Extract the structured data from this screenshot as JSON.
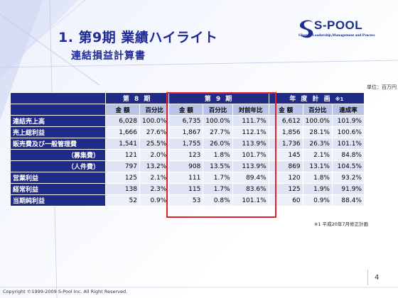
{
  "slide": {
    "title": "1. 第9期 業績ハイライト",
    "subtitle": "連結損益計算書",
    "unit_note": "単位：百万円",
    "footnote": "※1 平成20年7月修正計画",
    "page_number": "4",
    "copyright": "Copyright ©1999-2009 S-Pool Inc. All Right Reserved."
  },
  "logo": {
    "name": "S-POOL",
    "tagline": "Change Leadership,Management and Process"
  },
  "table": {
    "group_headers": [
      "第 8 期",
      "第 9 期",
      "年 度 計 画",
      "※1"
    ],
    "columns": [
      "金 額",
      "百分比",
      "金 額",
      "百分比",
      "対前年比",
      "金 額",
      "百分比",
      "達成率"
    ],
    "rows": [
      {
        "label": "連結売上高",
        "values": [
          "6,028",
          "100.0%",
          "6,735",
          "100.0%",
          "111.7%",
          "6,612",
          "100.0%",
          "101.9%"
        ]
      },
      {
        "label": "売上総利益",
        "values": [
          "1,666",
          "27.6%",
          "1,867",
          "27.7%",
          "112.1%",
          "1,856",
          "28.1%",
          "100.6%"
        ]
      },
      {
        "label": "販売費及び一般管理費",
        "values": [
          "1,541",
          "25.5%",
          "1,755",
          "26.0%",
          "113.9%",
          "1,736",
          "26.3%",
          "101.1%"
        ]
      },
      {
        "label": "（募集費）",
        "values": [
          "121",
          "2.0%",
          "123",
          "1.8%",
          "101.7%",
          "145",
          "2.1%",
          "84.8%"
        ]
      },
      {
        "label": "（人件費）",
        "values": [
          "797",
          "13.2%",
          "908",
          "13.5%",
          "113.9%",
          "869",
          "13.1%",
          "104.5%"
        ]
      },
      {
        "label": "営業利益",
        "values": [
          "125",
          "2.1%",
          "111",
          "1.7%",
          "89.4%",
          "120",
          "1.8%",
          "93.2%"
        ]
      },
      {
        "label": "経常利益",
        "values": [
          "138",
          "2.3%",
          "115",
          "1.7%",
          "83.6%",
          "125",
          "1.9%",
          "91.9%"
        ]
      },
      {
        "label": "当期純利益",
        "values": [
          "52",
          "0.9%",
          "53",
          "0.8%",
          "101.1%",
          "60",
          "0.9%",
          "88.4%"
        ]
      }
    ]
  },
  "colors": {
    "header_navy": "#1f2b86",
    "subheader_blue": "#b9c3e8",
    "highlight_red": "#e0202c",
    "title_blue": "#1f2a96"
  }
}
